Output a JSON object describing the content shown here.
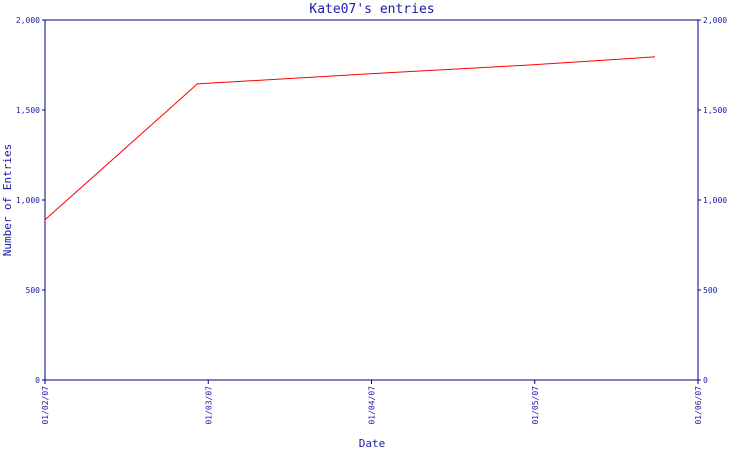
{
  "chart_data": {
    "type": "line",
    "title": "Kate07's entries",
    "xlabel": "Date",
    "ylabel": "Number of Entries",
    "x_ticks": [
      "01/02/07",
      "01/03/07",
      "01/04/07",
      "01/05/07",
      "01/06/07"
    ],
    "y_ticks": [
      "0",
      "500",
      "1,000",
      "1,500",
      "2,000"
    ],
    "ylim": [
      0,
      2000
    ],
    "xlim": [
      "2007-02-01",
      "2007-06-01"
    ],
    "grid": false,
    "series": [
      {
        "color": "#ff0000",
        "points": [
          {
            "x": "2007-02-01",
            "y": 890
          },
          {
            "x": "2007-03-01",
            "y": 1645
          },
          {
            "x": "2007-04-01",
            "y": 1700
          },
          {
            "x": "2007-05-01",
            "y": 1750
          },
          {
            "x": "2007-05-24",
            "y": 1795
          }
        ]
      }
    ],
    "axis_color": "#000080"
  }
}
